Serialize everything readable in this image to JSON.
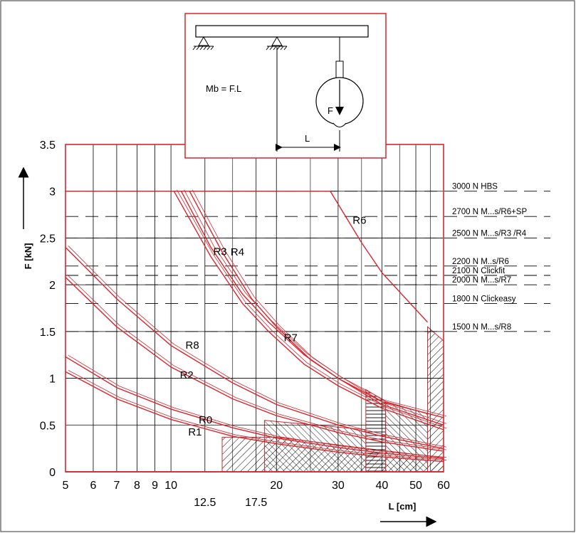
{
  "chart_data": {
    "type": "line",
    "title": "",
    "xlabel": "L  [cm]",
    "ylabel": "F  [kN]",
    "x_scale": "log",
    "xlim": [
      5,
      60
    ],
    "ylim": [
      0,
      3.5
    ],
    "grid": true,
    "x_ticks_major": [
      "5",
      "6",
      "7",
      "8",
      "9",
      "10",
      "20",
      "30",
      "40",
      "50",
      "60"
    ],
    "x_tick_values_major": [
      5,
      6,
      7,
      8,
      9,
      10,
      20,
      30,
      40,
      50,
      60
    ],
    "x_ticks_minor": [
      "12.5",
      "17.5"
    ],
    "x_tick_values_minor": [
      12.5,
      17.5
    ],
    "y_ticks": [
      "0",
      "0.5",
      "1",
      "1.5",
      "2",
      "2.5",
      "3",
      "3.5"
    ],
    "y_tick_values": [
      0,
      0.5,
      1,
      1.5,
      2,
      2.5,
      3,
      3.5
    ],
    "series": [
      {
        "name": "R6",
        "x": [
          5,
          28.5,
          35,
          40,
          54
        ],
        "y": [
          3.0,
          3.0,
          2.45,
          2.13,
          1.6
        ]
      },
      {
        "name": "R4",
        "x": [
          11.3,
          14,
          17,
          20,
          25,
          30,
          40,
          60
        ],
        "y": [
          3.0,
          2.35,
          1.85,
          1.55,
          1.2,
          1.0,
          0.75,
          0.58
        ]
      },
      {
        "name": "R3",
        "x": [
          10.7,
          13,
          16,
          19,
          24,
          30,
          40,
          60
        ],
        "y": [
          3.0,
          2.4,
          1.9,
          1.6,
          1.25,
          1.0,
          0.72,
          0.5
        ]
      },
      {
        "name": "R7",
        "x": [
          10.2,
          13,
          16,
          19,
          24,
          30,
          40,
          60
        ],
        "y": [
          3.0,
          2.3,
          1.8,
          1.5,
          1.15,
          0.92,
          0.68,
          0.45
        ]
      },
      {
        "name": "R8",
        "x": [
          5,
          7,
          10,
          15,
          20,
          30,
          40,
          60
        ],
        "y": [
          2.4,
          1.85,
          1.35,
          0.95,
          0.72,
          0.5,
          0.38,
          0.25
        ]
      },
      {
        "name": "R2",
        "x": [
          5,
          7,
          10,
          15,
          20,
          30,
          40,
          60
        ],
        "y": [
          2.08,
          1.55,
          1.12,
          0.78,
          0.6,
          0.42,
          0.32,
          0.22
        ]
      },
      {
        "name": "R0",
        "x": [
          5,
          7,
          10,
          15,
          20,
          30,
          40,
          60
        ],
        "y": [
          1.23,
          0.9,
          0.67,
          0.47,
          0.36,
          0.26,
          0.2,
          0.14
        ]
      },
      {
        "name": "R1",
        "x": [
          5,
          7,
          10,
          15,
          20,
          30,
          40,
          60
        ],
        "y": [
          1.07,
          0.78,
          0.56,
          0.38,
          0.3,
          0.21,
          0.16,
          0.11
        ]
      }
    ],
    "reference_lines": [
      {
        "y": 3.0,
        "text": "3000 N  HBS"
      },
      {
        "y": 2.7,
        "text": "2700 N  M...s/R6+SP"
      },
      {
        "y": 2.5,
        "text": "2500 N  M...s/R3     /R4"
      },
      {
        "y": 2.2,
        "text": "2200 N  M..s/R6"
      },
      {
        "y": 2.1,
        "text": "2100 N  Clickfit"
      },
      {
        "y": 2.0,
        "text": "2000 N  M...s/R7"
      },
      {
        "y": 1.8,
        "text": "1800 N      Clickeasy"
      },
      {
        "y": 1.5,
        "text": "1500 N  M...s/R8"
      }
    ],
    "hatched_regions": [
      {
        "x": [
          14,
          20,
          36,
          60
        ],
        "y_top": [
          0.37,
          0.37,
          0.25,
          0.15
        ]
      },
      {
        "x": [
          18.5,
          36
        ],
        "y_top": [
          0.55,
          0.45
        ]
      },
      {
        "x": [
          36,
          41
        ],
        "y_top": [
          0.88,
          0.75
        ]
      },
      {
        "x": [
          41,
          54
        ],
        "y_top": [
          0.75,
          0.62
        ]
      },
      {
        "x": [
          54,
          60
        ],
        "y_top": [
          1.55,
          1.4
        ]
      }
    ],
    "inset": {
      "formula": "Mb = F.L",
      "force_label": "F",
      "length_label": "L"
    },
    "colors": {
      "curve": "#d9262e",
      "grid": "#000000",
      "inset_border": "#d9262e",
      "frame": "#555555"
    }
  }
}
